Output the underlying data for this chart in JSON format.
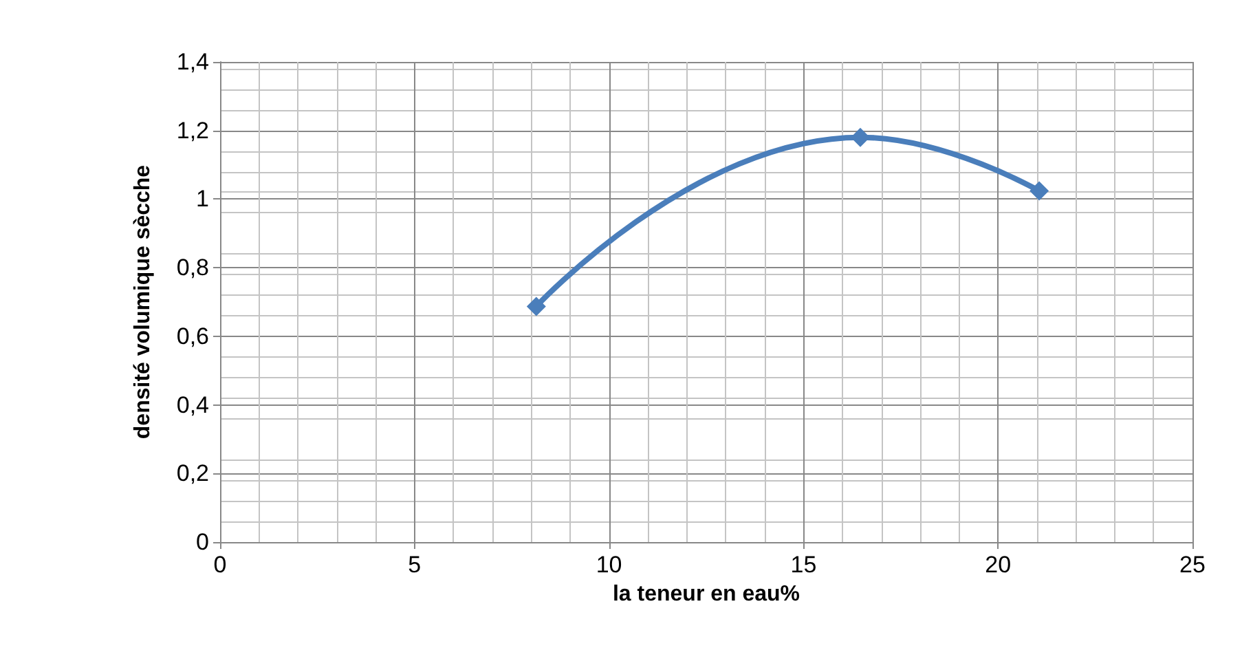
{
  "chart_data": {
    "type": "line",
    "xlabel": "la teneur en eau%",
    "ylabel": "densité volumique sècche",
    "x": [
      8.13,
      16.46,
      21.06
    ],
    "series": [
      {
        "color": "#4a7ebb",
        "values": [
          0.687,
          1.18,
          1.024
        ]
      }
    ],
    "xlim": [
      0,
      25
    ],
    "xticks": [
      0,
      5,
      10,
      15,
      20,
      25
    ],
    "ylim": [
      0,
      1.4
    ],
    "yticks": [
      0,
      {
        "value": 0.2,
        "label": "0,2"
      },
      {
        "value": 0.4,
        "label": "0,4"
      },
      {
        "value": 0.6,
        "label": "0,6"
      },
      {
        "value": 0.8,
        "label": "0,8"
      },
      1,
      {
        "value": 1.2,
        "label": "1,2"
      },
      {
        "value": 1.4,
        "label": "1,4"
      }
    ],
    "grid": true,
    "marker": "diamond",
    "line_style": "solid"
  }
}
